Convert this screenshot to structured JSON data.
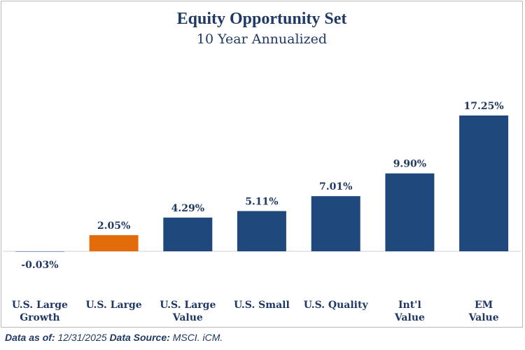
{
  "chart_data": {
    "type": "bar",
    "title": "Equity Opportunity Set",
    "subtitle": "10 Year Annualized",
    "categories": [
      [
        "U.S. Large",
        "Growth"
      ],
      [
        "U.S. Large"
      ],
      [
        "U.S. Large",
        "Value"
      ],
      [
        "U.S. Small"
      ],
      [
        "U.S. Quality"
      ],
      [
        "Int'l",
        "Value"
      ],
      [
        "EM",
        "Value"
      ]
    ],
    "values": [
      -0.03,
      2.05,
      4.29,
      5.11,
      7.01,
      9.9,
      17.25
    ],
    "value_labels": [
      "-0.03%",
      "2.05%",
      "4.29%",
      "5.11%",
      "7.01%",
      "9.90%",
      "17.25%"
    ],
    "colors": [
      "#1f497d",
      "#e36c0a",
      "#1f497d",
      "#1f497d",
      "#1f497d",
      "#1f497d",
      "#1f497d"
    ],
    "highlight_color": "#e36c0a",
    "bar_color": "#1f497d",
    "text_color": "#1f3864",
    "ylim": [
      0,
      17.25
    ],
    "grid": false,
    "legend": "none"
  },
  "footer": {
    "data_as_of_label": "Data as of:",
    "data_as_of_value": "12/31/2025",
    "source_label": "Data Source:",
    "source_value": "MSCI. iCM."
  }
}
